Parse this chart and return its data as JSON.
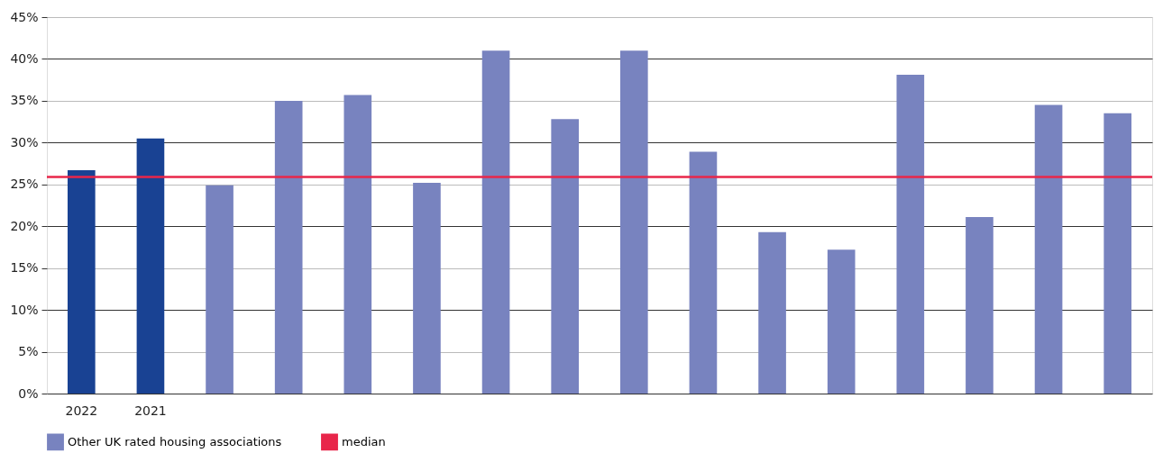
{
  "chart_data": {
    "type": "bar",
    "categories": [
      "2022",
      "2021",
      null,
      null,
      null,
      null,
      null,
      null,
      null,
      null,
      null,
      null,
      null,
      null,
      null,
      null
    ],
    "series": [
      {
        "color": "#194293",
        "values": [
          26.7,
          30.5,
          null,
          null,
          null,
          null,
          null,
          null,
          null,
          null,
          null,
          null,
          null,
          null,
          null,
          null
        ]
      },
      {
        "name": "Other UK rated housing associations",
        "color": "#7883bf",
        "values": [
          null,
          null,
          24.9,
          35.0,
          35.7,
          25.2,
          41.0,
          32.8,
          41.0,
          28.9,
          19.3,
          17.2,
          38.1,
          21.1,
          34.5,
          33.5
        ]
      }
    ],
    "ylim": [
      0,
      45
    ],
    "yticks": [
      {
        "value": 0,
        "label": "0%"
      },
      {
        "value": 5,
        "label": "5%"
      },
      {
        "value": 10,
        "label": "10%"
      },
      {
        "value": 15,
        "label": "15%"
      },
      {
        "value": 20,
        "label": "20%"
      },
      {
        "value": 25,
        "label": "25%"
      },
      {
        "value": 30,
        "label": "30%"
      },
      {
        "value": 35,
        "label": "35%"
      },
      {
        "value": 40,
        "label": "40%"
      },
      {
        "value": 45,
        "label": "45%"
      }
    ],
    "ref_lines": [
      {
        "axis": "y",
        "value": 25.9,
        "label": "median",
        "color": "#e8264a"
      }
    ],
    "grid": "y",
    "legend": "bottom"
  }
}
